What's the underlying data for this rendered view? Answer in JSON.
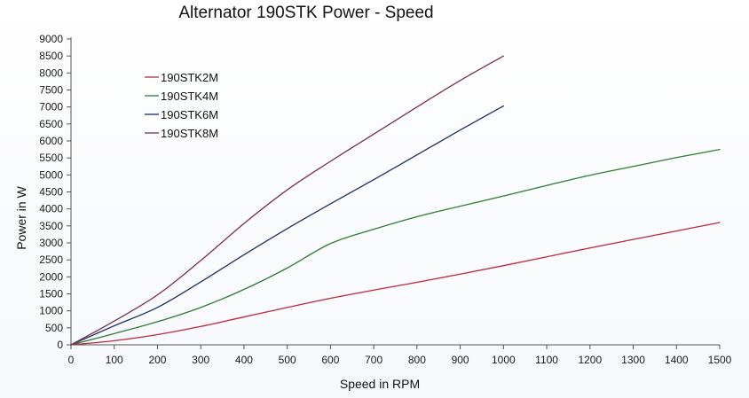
{
  "chart_data": {
    "type": "line",
    "title": "Alternator 190STK Power - Speed",
    "xlabel": "Speed in RPM",
    "ylabel": "Power in W",
    "xlim": [
      0,
      1500
    ],
    "ylim": [
      0,
      9000
    ],
    "xticks": [
      "0",
      "100",
      "200",
      "300",
      "400",
      "500",
      "600",
      "700",
      "800",
      "900",
      "1000",
      "1100",
      "1200",
      "1300",
      "1400",
      "1500"
    ],
    "yticks": [
      "0",
      "500",
      "1000",
      "1500",
      "2000",
      "2500",
      "3000",
      "3500",
      "4000",
      "4500",
      "5000",
      "5500",
      "6000",
      "6500",
      "7000",
      "7500",
      "8000",
      "8500",
      "9000"
    ],
    "grid": false,
    "legend_position": "top-left",
    "series": [
      {
        "name": "190STK2M",
        "color": "#c0283c",
        "points": [
          [
            0,
            0
          ],
          [
            100,
            120
          ],
          [
            200,
            300
          ],
          [
            300,
            540
          ],
          [
            400,
            820
          ],
          [
            500,
            1100
          ],
          [
            600,
            1370
          ],
          [
            700,
            1610
          ],
          [
            800,
            1840
          ],
          [
            900,
            2080
          ],
          [
            1000,
            2330
          ],
          [
            1100,
            2590
          ],
          [
            1200,
            2850
          ],
          [
            1300,
            3100
          ],
          [
            1400,
            3350
          ],
          [
            1500,
            3600
          ]
        ]
      },
      {
        "name": "190STK4M",
        "color": "#2e7d32",
        "points": [
          [
            0,
            0
          ],
          [
            100,
            330
          ],
          [
            200,
            680
          ],
          [
            300,
            1100
          ],
          [
            400,
            1630
          ],
          [
            500,
            2260
          ],
          [
            600,
            2980
          ],
          [
            700,
            3400
          ],
          [
            800,
            3770
          ],
          [
            900,
            4080
          ],
          [
            1000,
            4380
          ],
          [
            1100,
            4690
          ],
          [
            1200,
            4990
          ],
          [
            1300,
            5250
          ],
          [
            1400,
            5510
          ],
          [
            1500,
            5750
          ]
        ]
      },
      {
        "name": "190STK6M",
        "color": "#1f2f66",
        "points": [
          [
            0,
            0
          ],
          [
            100,
            560
          ],
          [
            200,
            1100
          ],
          [
            300,
            1850
          ],
          [
            400,
            2650
          ],
          [
            500,
            3420
          ],
          [
            600,
            4150
          ],
          [
            700,
            4860
          ],
          [
            800,
            5590
          ],
          [
            900,
            6320
          ],
          [
            1000,
            7030
          ]
        ]
      },
      {
        "name": "190STK8M",
        "color": "#7b2d52",
        "points": [
          [
            0,
            0
          ],
          [
            100,
            700
          ],
          [
            200,
            1470
          ],
          [
            300,
            2480
          ],
          [
            400,
            3570
          ],
          [
            500,
            4560
          ],
          [
            600,
            5400
          ],
          [
            700,
            6200
          ],
          [
            800,
            7000
          ],
          [
            900,
            7780
          ],
          [
            1000,
            8500
          ]
        ]
      }
    ]
  }
}
